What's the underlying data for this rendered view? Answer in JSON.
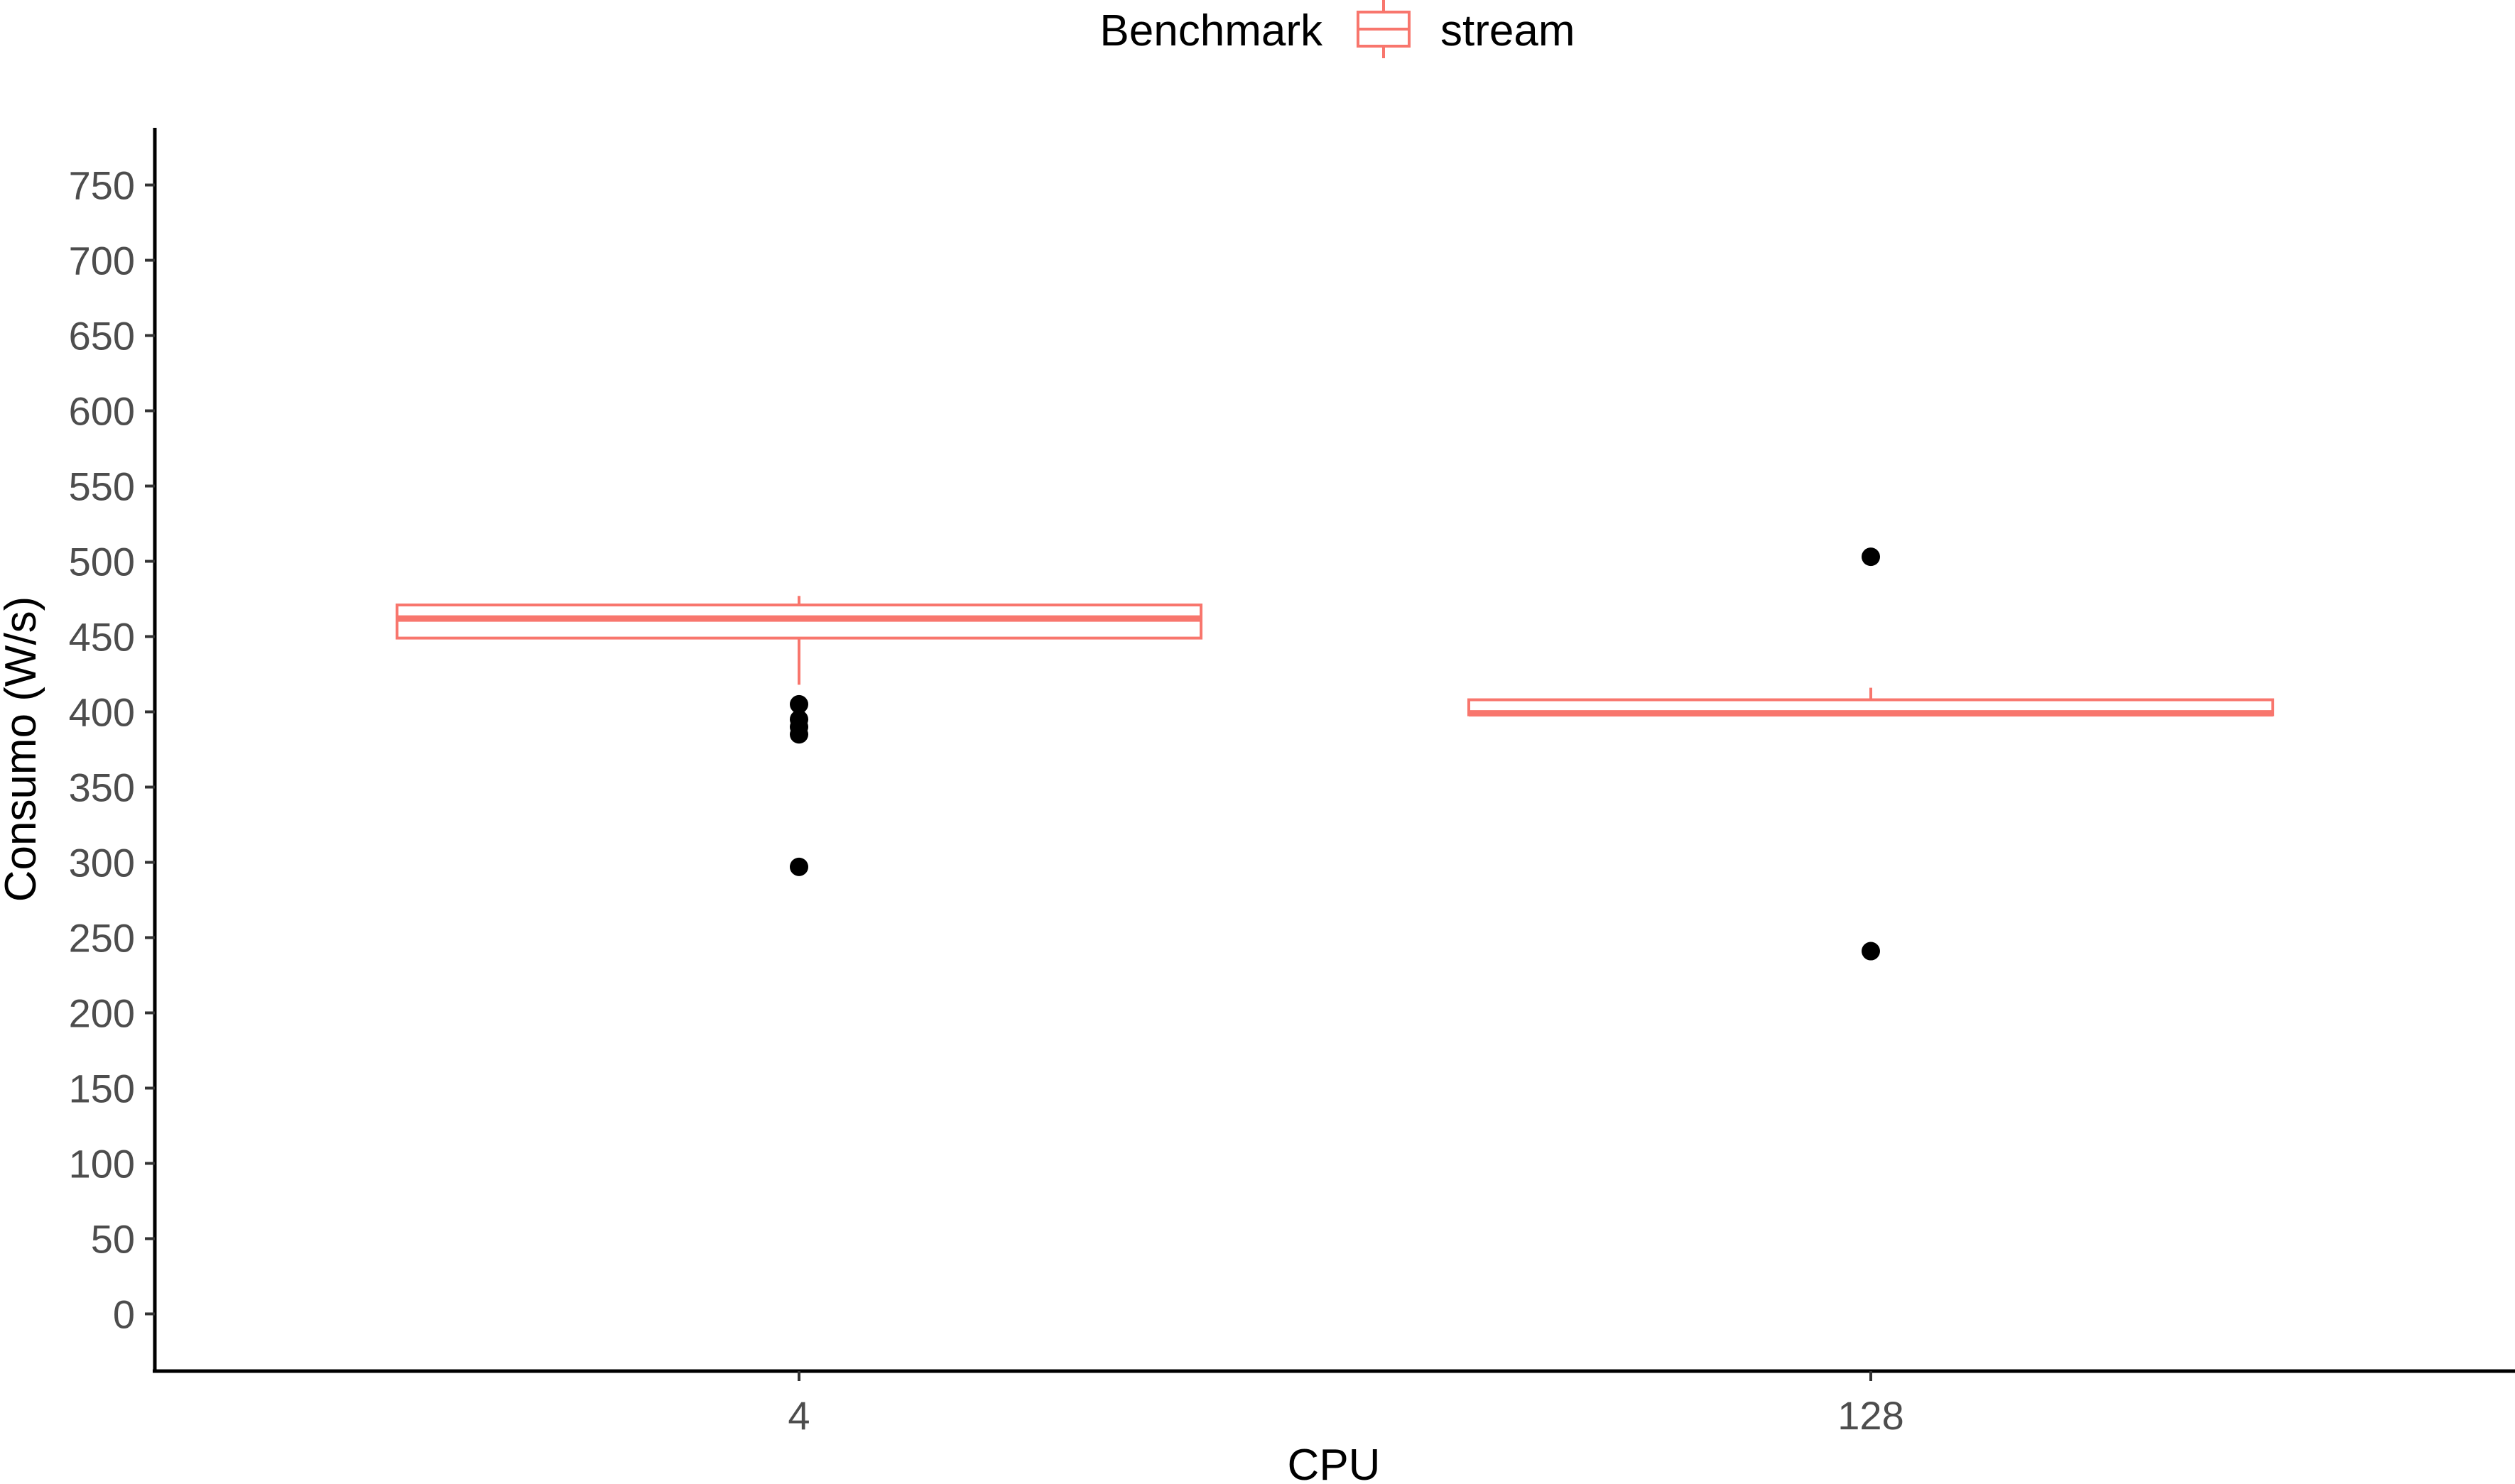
{
  "chart_data": {
    "type": "boxplot",
    "xlabel": "CPU",
    "ylabel": "Consumo (W/s)",
    "categories": [
      "4",
      "128"
    ],
    "ylim": [
      -38,
      788
    ],
    "yticks": [
      0,
      50,
      100,
      150,
      200,
      250,
      300,
      350,
      400,
      450,
      500,
      550,
      600,
      650,
      700,
      750
    ],
    "grid": false,
    "legend": {
      "title": "Benchmark",
      "position": "top",
      "entries": [
        "stream"
      ]
    },
    "series": [
      {
        "name": "stream",
        "color": "#F8766D",
        "boxes": [
          {
            "category": "4",
            "whisker_low": 418,
            "q1": 449,
            "median": 462,
            "q3": 471,
            "whisker_high": 477,
            "outliers": [
              405,
              395,
              390,
              385,
              297
            ]
          },
          {
            "category": "128",
            "whisker_low": 397,
            "q1": 398,
            "median": 399,
            "q3": 408,
            "whisker_high": 416,
            "outliers": [
              503,
              241
            ]
          }
        ]
      }
    ]
  }
}
